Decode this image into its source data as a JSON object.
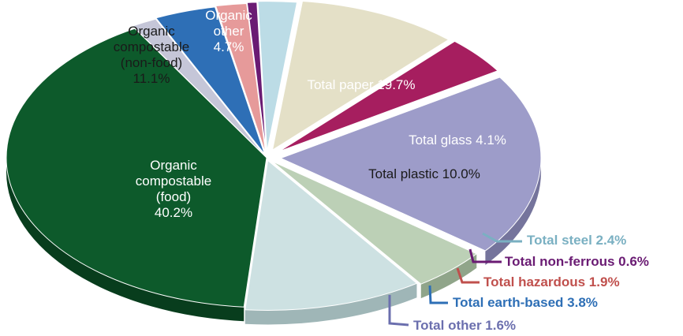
{
  "chart_data": {
    "type": "pie",
    "style": "3d-exploded",
    "slices": [
      {
        "id": "organic-food",
        "label_lines": [
          "Organic",
          "compostable",
          "(food)",
          "40.2%"
        ],
        "value": 40.2,
        "color": "#0d5a2b",
        "side": "#083d1d",
        "label_style": "white"
      },
      {
        "id": "total-other",
        "label_lines": [
          "Total other 1.6%"
        ],
        "value": 1.6,
        "color": "#c5c6d8",
        "side": "#9a9bb0",
        "label_style": "outside",
        "label_color": "#6b6fae"
      },
      {
        "id": "total-earth-based",
        "label_lines": [
          "Total earth-based 3.8%"
        ],
        "value": 3.8,
        "color": "#2e6fb6",
        "side": "#1f4f85",
        "label_style": "outside",
        "label_color": "#2e6fb6"
      },
      {
        "id": "total-hazardous",
        "label_lines": [
          "Total hazardous 1.9%"
        ],
        "value": 1.9,
        "color": "#e69a9a",
        "side": "#b86f6f",
        "label_style": "outside",
        "label_color": "#c0504d"
      },
      {
        "id": "total-non-ferrous",
        "label_lines": [
          "Total non-ferrous 0.6%"
        ],
        "value": 0.6,
        "color": "#6a1b73",
        "side": "#4a124f",
        "label_style": "outside",
        "label_color": "#6a1b73"
      },
      {
        "id": "total-steel",
        "label_lines": [
          "Total steel 2.4%"
        ],
        "value": 2.4,
        "color": "#bcdce6",
        "side": "#8fb3bf",
        "label_style": "outside",
        "label_color": "#7ab0c2"
      },
      {
        "id": "total-plastic",
        "label_lines": [
          "Total plastic 10.0%"
        ],
        "value": 10.0,
        "color": "#e4e0c7",
        "side": "#b8b49b",
        "label_style": "dark"
      },
      {
        "id": "total-glass",
        "label_lines": [
          "Total glass 4.1%"
        ],
        "value": 4.1,
        "color": "#a61e5f",
        "side": "#761442",
        "label_style": "white"
      },
      {
        "id": "total-paper",
        "label_lines": [
          "Total paper 19.7%"
        ],
        "value": 19.7,
        "color": "#9d9cc9",
        "side": "#75749c",
        "label_style": "white"
      },
      {
        "id": "organic-other",
        "label_lines": [
          "Organic",
          "other",
          "4.7%"
        ],
        "value": 4.7,
        "color": "#bcd0b6",
        "side": "#90a58a",
        "label_style": "white"
      },
      {
        "id": "organic-non-food",
        "label_lines": [
          "Organic",
          "compostable",
          "(non-food)",
          "11.1%"
        ],
        "value": 11.1,
        "color": "#cde1e2",
        "side": "#9fb6b7",
        "label_style": "dark"
      }
    ]
  }
}
